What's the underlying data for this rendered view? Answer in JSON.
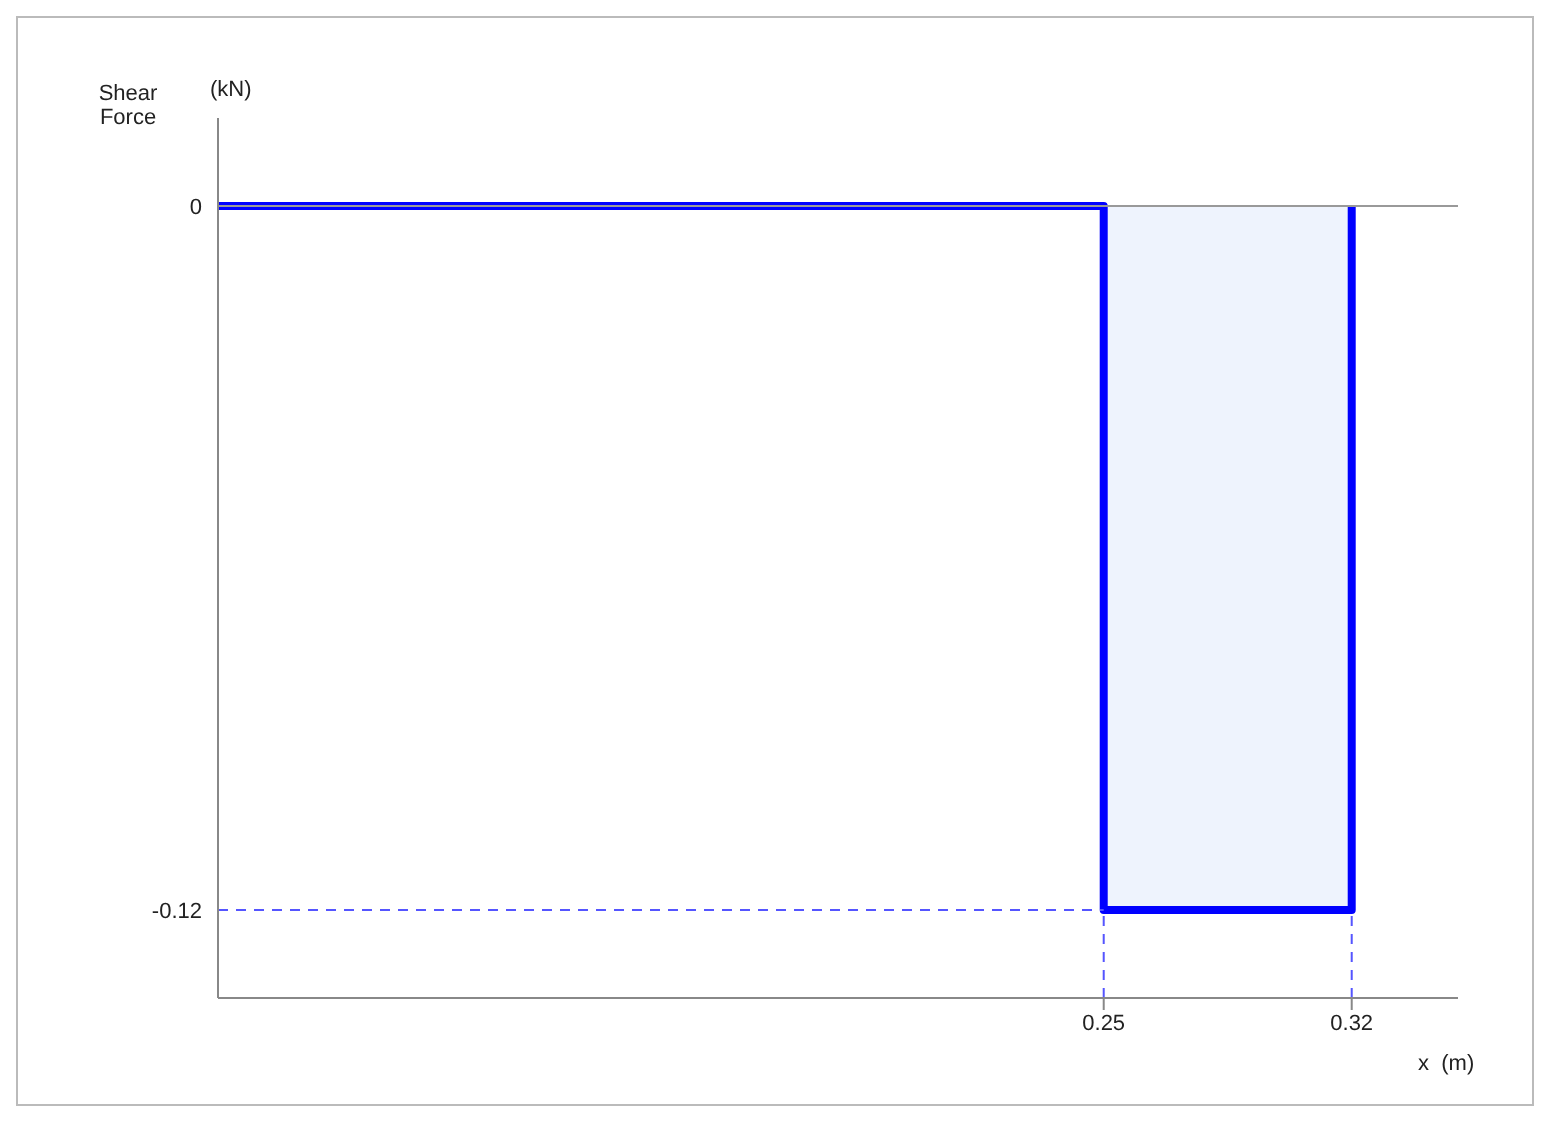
{
  "chart_data": {
    "type": "area",
    "ylabel": "Shear Force",
    "xlabel": "x  (m)",
    "annotations": [
      "(kN)"
    ],
    "x": [
      0,
      0.25,
      0.25,
      0.32,
      0.32
    ],
    "series": [
      {
        "color": "#0000ff",
        "values": [
          0,
          0,
          -0.12,
          -0.12,
          0
        ]
      }
    ],
    "xlim": [
      0,
      0.35
    ],
    "xticks": [
      0.25,
      0.32
    ],
    "ylim": [
      -0.135,
      0.015
    ],
    "yticks": [
      0,
      -0.12
    ],
    "ref_lines": [
      {
        "axis": "y",
        "value": 0,
        "color": "#999999",
        "line_style": "solid"
      },
      {
        "axis": "y",
        "value": -0.12,
        "color": "#5555ff",
        "line_style": "dashed"
      },
      {
        "axis": "x",
        "value": 0.25,
        "color": "#5555ff",
        "line_style": "dashed"
      },
      {
        "axis": "x",
        "value": 0.32,
        "color": "#5555ff",
        "line_style": "dashed"
      }
    ],
    "grid": false,
    "legend": false
  }
}
